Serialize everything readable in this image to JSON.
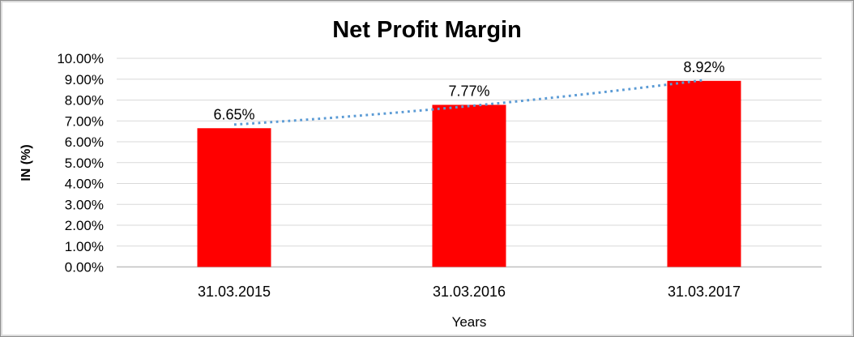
{
  "chart_data": {
    "type": "bar",
    "title": "Net Profit Margin",
    "xlabel": "Years",
    "ylabel": "IN (%)",
    "categories": [
      "31.03.2015",
      "31.03.2016",
      "31.03.2017"
    ],
    "values": [
      6.65,
      7.77,
      8.92
    ],
    "data_labels": [
      "6.65%",
      "7.77%",
      "8.92%"
    ],
    "ylim": [
      0,
      10
    ],
    "ytick_step": 1,
    "ytick_labels": [
      "0.00%",
      "1.00%",
      "2.00%",
      "3.00%",
      "4.00%",
      "5.00%",
      "6.00%",
      "7.00%",
      "8.00%",
      "9.00%",
      "10.00%"
    ],
    "grid": true,
    "legend": "none",
    "bar_color": "#ff0000",
    "gridline_color": "#d9d9d9",
    "axis_line_color": "#bfbfbf",
    "text_color": "#000000",
    "trendline": {
      "style": "dotted",
      "color": "#5b9bd5"
    }
  }
}
